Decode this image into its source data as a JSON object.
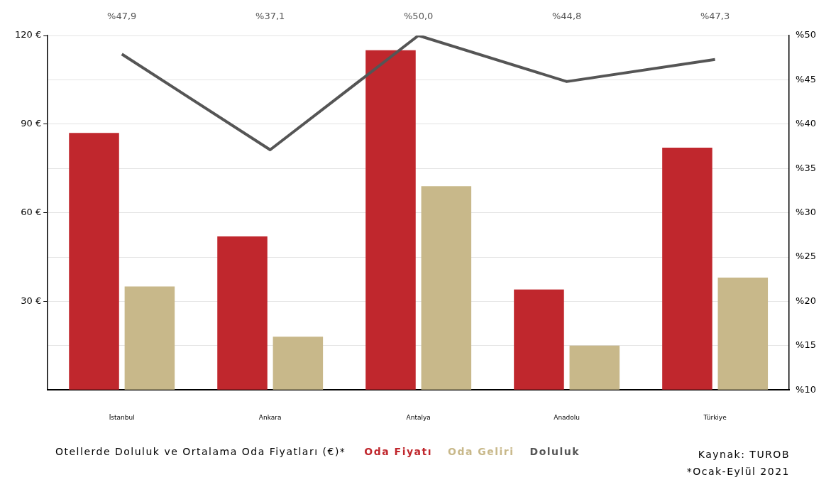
{
  "chart_data": {
    "type": "bar",
    "title": "Otellerde Doluluk ve Ortalama Oda Fiyatları (€)*",
    "categories": [
      "İstanbul",
      "Ankara",
      "Antalya",
      "Anadolu",
      "Türkiye"
    ],
    "series": [
      {
        "name": "Oda Fiyatı",
        "color": "#c0272d",
        "values": [
          87,
          52,
          115,
          34,
          82
        ]
      },
      {
        "name": "Oda Geliri",
        "color": "#c8b88a",
        "values": [
          35,
          18,
          69,
          15,
          38
        ]
      },
      {
        "name": "Doluluk",
        "type": "line",
        "axis": "y2",
        "color": "#555555",
        "values": [
          47.9,
          37.1,
          50.0,
          44.8,
          47.3
        ],
        "value_labels": [
          "%47,9",
          "%37,1",
          "%50,0",
          "%44,8",
          "%47,3"
        ]
      }
    ],
    "ylim": [
      0,
      120
    ],
    "yticks": [
      {
        "value": 0,
        "label": null
      },
      {
        "value": 15,
        "label": null
      },
      {
        "value": 30,
        "label": "30 €"
      },
      {
        "value": 45,
        "label": null
      },
      {
        "value": 60,
        "label": "60 €"
      },
      {
        "value": 75,
        "label": null
      },
      {
        "value": 90,
        "label": "90 €"
      },
      {
        "value": 105,
        "label": null
      },
      {
        "value": 120,
        "label": "120 €"
      }
    ],
    "y2lim": [
      10,
      50
    ],
    "y2ticks": [
      {
        "value": 10,
        "label": "%10"
      },
      {
        "value": 15,
        "label": "%15"
      },
      {
        "value": 20,
        "label": "%20"
      },
      {
        "value": 25,
        "label": "%25"
      },
      {
        "value": 30,
        "label": "%30"
      },
      {
        "value": 35,
        "label": "%35"
      },
      {
        "value": 40,
        "label": "%40"
      },
      {
        "value": 45,
        "label": "%45"
      },
      {
        "value": 50,
        "label": "%50"
      }
    ],
    "grid": "y",
    "legend": "bottom",
    "marker": "none",
    "annotations": [
      "Kaynak: TUROB",
      "*Ocak-Eylül 2021"
    ]
  }
}
